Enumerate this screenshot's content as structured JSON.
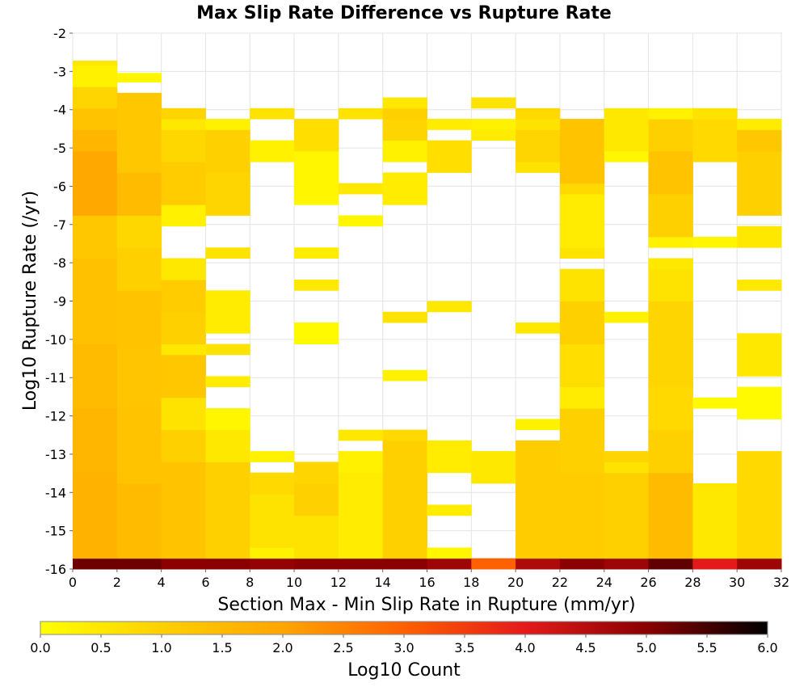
{
  "chart_data": {
    "type": "heatmap",
    "title": "Max Slip Rate Difference vs Rupture Rate",
    "xlabel": "Section Max - Min Slip Rate in Rupture (mm/yr)",
    "ylabel": "Log10 Rupture Rate (/yr)",
    "xlim": [
      0,
      32
    ],
    "ylim": [
      -16,
      -2
    ],
    "x_bin_width": 2,
    "y_bin_height": 0.28,
    "x_ticks": [
      "0",
      "2",
      "4",
      "6",
      "8",
      "10",
      "12",
      "14",
      "16",
      "18",
      "20",
      "22",
      "24",
      "26",
      "28",
      "30",
      "32"
    ],
    "y_ticks": [
      "-2",
      "-3",
      "-4",
      "-5",
      "-6",
      "-7",
      "-8",
      "-9",
      "-10",
      "-11",
      "-12",
      "-13",
      "-14",
      "-15",
      "-16"
    ],
    "grid": true,
    "colorbar": {
      "label": "Log10 Count",
      "range": [
        0,
        6
      ],
      "ticks": [
        "0.0",
        "0.5",
        "1.0",
        "1.5",
        "2.0",
        "2.5",
        "3.0",
        "3.5",
        "4.0",
        "4.5",
        "5.0",
        "5.5",
        "6.0"
      ],
      "colors": [
        "#ffff00",
        "#ffd000",
        "#ffa500",
        "#ff6000",
        "#e31a1c",
        "#8b0000",
        "#000000"
      ]
    },
    "columns": [
      {
        "x": 0,
        "cells": [
          [
            -16,
            -15.72,
            5.2
          ],
          [
            -15.72,
            -13.48,
            1.7
          ],
          [
            -13.48,
            -11.8,
            1.6
          ],
          [
            -11.8,
            -10.12,
            1.5
          ],
          [
            -10.12,
            -7.88,
            1.35
          ],
          [
            -7.88,
            -6.76,
            1.2
          ],
          [
            -6.76,
            -5.08,
            1.9
          ],
          [
            -5.08,
            -4.52,
            1.6
          ],
          [
            -4.52,
            -3.96,
            1.3
          ],
          [
            -3.96,
            -3.4,
            0.9
          ],
          [
            -3.4,
            -2.84,
            0.3
          ],
          [
            -2.84,
            -2.72,
            0.5
          ]
        ]
      },
      {
        "x": 2,
        "cells": [
          [
            -16,
            -15.72,
            5.2
          ],
          [
            -15.72,
            -13.76,
            1.5
          ],
          [
            -13.76,
            -11.8,
            1.3
          ],
          [
            -11.8,
            -10.12,
            1.25
          ],
          [
            -10.12,
            -8.72,
            1.3
          ],
          [
            -8.72,
            -7.6,
            1.0
          ],
          [
            -7.6,
            -6.76,
            0.85
          ],
          [
            -6.76,
            -5.64,
            1.5
          ],
          [
            -5.64,
            -3.56,
            1.2
          ],
          [
            -3.28,
            -3.04,
            0.2
          ]
        ]
      },
      {
        "x": 4,
        "cells": [
          [
            -16,
            -15.72,
            5.0
          ],
          [
            -15.72,
            -13.2,
            1.3
          ],
          [
            -13.2,
            -12.36,
            1.0
          ],
          [
            -12.36,
            -11.52,
            0.6
          ],
          [
            -11.52,
            -10.4,
            1.2
          ],
          [
            -10.4,
            -10.12,
            0.5
          ],
          [
            -10.12,
            -9.28,
            1.0
          ],
          [
            -9.28,
            -8.44,
            1.1
          ],
          [
            -8.44,
            -7.88,
            0.5
          ],
          [
            -7.04,
            -6.48,
            0.3
          ],
          [
            -6.48,
            -5.36,
            1.1
          ],
          [
            -5.36,
            -4.52,
            0.85
          ],
          [
            -4.52,
            -4.24,
            0.5
          ],
          [
            -4.24,
            -3.96,
            0.9
          ]
        ]
      },
      {
        "x": 6,
        "cells": [
          [
            -16,
            -15.72,
            5.0
          ],
          [
            -15.72,
            -13.2,
            1.0
          ],
          [
            -13.2,
            -12.36,
            0.5
          ],
          [
            -12.36,
            -11.8,
            0.2
          ],
          [
            -11.24,
            -10.96,
            0.4
          ],
          [
            -10.4,
            -10.12,
            0.6
          ],
          [
            -9.84,
            -8.72,
            0.4
          ],
          [
            -7.88,
            -7.6,
            0.6
          ],
          [
            -6.76,
            -5.64,
            0.9
          ],
          [
            -5.64,
            -4.52,
            1.0
          ],
          [
            -4.52,
            -4.24,
            0.3
          ]
        ]
      },
      {
        "x": 8,
        "cells": [
          [
            -16,
            -15.72,
            4.9
          ],
          [
            -15.72,
            -15.44,
            0.3
          ],
          [
            -15.44,
            -14.04,
            0.6
          ],
          [
            -14.04,
            -13.48,
            0.8
          ],
          [
            -13.2,
            -12.92,
            0.3
          ],
          [
            -5.36,
            -4.8,
            0.3
          ],
          [
            -4.24,
            -3.96,
            0.6
          ]
        ]
      },
      {
        "x": 10,
        "cells": [
          [
            -16,
            -15.72,
            5.0
          ],
          [
            -15.72,
            -14.6,
            0.6
          ],
          [
            -14.6,
            -13.76,
            1.0
          ],
          [
            -13.76,
            -13.2,
            0.9
          ],
          [
            -10.12,
            -9.56,
            0.1
          ],
          [
            -8.72,
            -8.44,
            0.5
          ],
          [
            -7.88,
            -7.6,
            0.4
          ],
          [
            -6.48,
            -5.08,
            0.2
          ],
          [
            -5.08,
            -4.24,
            0.7
          ]
        ]
      },
      {
        "x": 12,
        "cells": [
          [
            -16,
            -15.72,
            5.0
          ],
          [
            -15.72,
            -13.48,
            0.4
          ],
          [
            -13.48,
            -12.92,
            0.3
          ],
          [
            -12.64,
            -12.36,
            0.5
          ],
          [
            -7.04,
            -6.76,
            0.2
          ],
          [
            -6.2,
            -5.92,
            0.5
          ],
          [
            -4.24,
            -3.96,
            0.6
          ]
        ]
      },
      {
        "x": 14,
        "cells": [
          [
            -16,
            -15.72,
            5.0
          ],
          [
            -15.72,
            -12.64,
            1.0
          ],
          [
            -12.64,
            -12.36,
            0.8
          ],
          [
            -11.08,
            -10.8,
            0.3
          ],
          [
            -9.56,
            -9.28,
            0.6
          ],
          [
            -6.48,
            -5.64,
            0.4
          ],
          [
            -5.36,
            -4.8,
            0.3
          ],
          [
            -4.8,
            -4.24,
            0.9
          ],
          [
            -4.24,
            -3.96,
            1.0
          ],
          [
            -3.96,
            -3.68,
            0.5
          ]
        ]
      },
      {
        "x": 16,
        "cells": [
          [
            -16,
            -15.72,
            4.8
          ],
          [
            -15.72,
            -15.44,
            0.2
          ],
          [
            -14.6,
            -14.32,
            0.4
          ],
          [
            -13.48,
            -12.64,
            0.4
          ],
          [
            -9.28,
            -9.0,
            0.5
          ],
          [
            -5.64,
            -4.8,
            0.7
          ],
          [
            -4.52,
            -4.24,
            0.4
          ]
        ]
      },
      {
        "x": 18,
        "cells": [
          [
            -16,
            -15.72,
            3.0
          ],
          [
            -13.76,
            -12.92,
            0.5
          ],
          [
            -4.8,
            -4.52,
            0.4
          ],
          [
            -4.52,
            -4.24,
            0.3
          ],
          [
            -3.96,
            -3.68,
            0.6
          ]
        ]
      },
      {
        "x": 20,
        "cells": [
          [
            -16,
            -15.72,
            4.6
          ],
          [
            -15.72,
            -12.64,
            1.1
          ],
          [
            -12.36,
            -12.08,
            0.3
          ],
          [
            -9.84,
            -9.56,
            0.5
          ],
          [
            -5.64,
            -5.36,
            0.6
          ],
          [
            -5.36,
            -4.52,
            0.9
          ],
          [
            -4.52,
            -4.24,
            0.6
          ],
          [
            -4.24,
            -3.96,
            0.8
          ]
        ]
      },
      {
        "x": 22,
        "cells": [
          [
            -16,
            -15.72,
            5.0
          ],
          [
            -15.72,
            -13.48,
            1.1
          ],
          [
            -13.48,
            -11.8,
            1.0
          ],
          [
            -11.8,
            -11.24,
            0.4
          ],
          [
            -11.24,
            -10.12,
            0.7
          ],
          [
            -10.12,
            -9.0,
            1.0
          ],
          [
            -9.0,
            -8.16,
            0.6
          ],
          [
            -7.88,
            -7.6,
            0.6
          ],
          [
            -7.6,
            -6.2,
            0.4
          ],
          [
            -6.2,
            -5.92,
            0.8
          ],
          [
            -5.92,
            -4.24,
            1.3
          ]
        ]
      },
      {
        "x": 24,
        "cells": [
          [
            -16,
            -15.72,
            4.8
          ],
          [
            -15.72,
            -13.48,
            1.0
          ],
          [
            -13.48,
            -13.2,
            0.6
          ],
          [
            -13.2,
            -12.92,
            0.9
          ],
          [
            -9.56,
            -9.28,
            0.3
          ],
          [
            -5.36,
            -5.08,
            0.2
          ],
          [
            -5.08,
            -3.96,
            0.5
          ]
        ]
      },
      {
        "x": 26,
        "cells": [
          [
            -16,
            -15.72,
            5.3
          ],
          [
            -15.72,
            -13.48,
            1.5
          ],
          [
            -13.48,
            -12.36,
            1.0
          ],
          [
            -12.36,
            -11.24,
            0.8
          ],
          [
            -11.24,
            -9.0,
            0.9
          ],
          [
            -9.0,
            -8.16,
            0.6
          ],
          [
            -8.16,
            -7.88,
            0.5
          ],
          [
            -7.6,
            -7.32,
            0.3
          ],
          [
            -7.32,
            -6.2,
            1.0
          ],
          [
            -6.2,
            -5.08,
            1.3
          ],
          [
            -5.08,
            -4.24,
            1.0
          ],
          [
            -4.24,
            -3.96,
            0.3
          ]
        ]
      },
      {
        "x": 28,
        "cells": [
          [
            -16,
            -15.72,
            4.0
          ],
          [
            -15.72,
            -13.76,
            0.5
          ],
          [
            -11.8,
            -11.52,
            0.1
          ],
          [
            -7.6,
            -7.32,
            0.2
          ],
          [
            -5.36,
            -4.24,
            0.8
          ],
          [
            -4.24,
            -3.96,
            0.6
          ]
        ]
      },
      {
        "x": 30,
        "cells": [
          [
            -16,
            -15.72,
            4.8
          ],
          [
            -15.72,
            -12.92,
            0.8
          ],
          [
            -12.08,
            -11.24,
            0.1
          ],
          [
            -10.96,
            -9.84,
            0.5
          ],
          [
            -8.72,
            -8.44,
            0.5
          ],
          [
            -7.6,
            -7.04,
            0.5
          ],
          [
            -6.76,
            -5.08,
            1.0
          ],
          [
            -5.08,
            -4.52,
            1.2
          ],
          [
            -4.52,
            -4.24,
            0.4
          ]
        ]
      }
    ]
  }
}
